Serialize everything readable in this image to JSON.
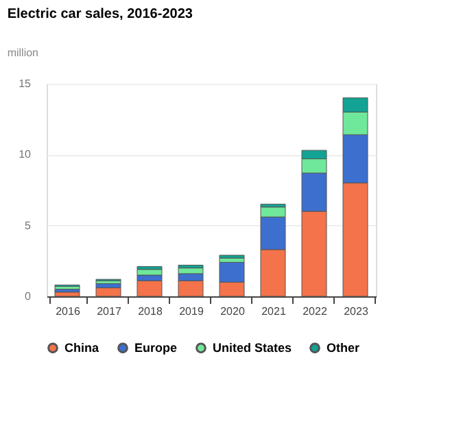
{
  "chart_data": {
    "type": "bar",
    "title": "Electric car sales, 2016-2023",
    "ylabel": "million",
    "categories": [
      "2016",
      "2017",
      "2018",
      "2019",
      "2020",
      "2021",
      "2022",
      "2023"
    ],
    "stacked": true,
    "series": [
      {
        "name": "China",
        "color": "#f4734a",
        "values": [
          0.3,
          0.6,
          1.1,
          1.1,
          1.0,
          3.3,
          6.0,
          8.0
        ]
      },
      {
        "name": "Europe",
        "color": "#3d6fcf",
        "values": [
          0.2,
          0.3,
          0.4,
          0.5,
          1.4,
          2.3,
          2.7,
          3.4
        ]
      },
      {
        "name": "United States",
        "color": "#6fe89b",
        "values": [
          0.2,
          0.2,
          0.4,
          0.4,
          0.3,
          0.7,
          1.0,
          1.6
        ]
      },
      {
        "name": "Other",
        "color": "#12a394",
        "values": [
          0.1,
          0.1,
          0.2,
          0.2,
          0.2,
          0.2,
          0.6,
          1.0
        ]
      }
    ],
    "ylim": [
      0,
      15
    ],
    "yticks": [
      0,
      5,
      10,
      15
    ],
    "grid": "y",
    "legend": "bottom"
  }
}
